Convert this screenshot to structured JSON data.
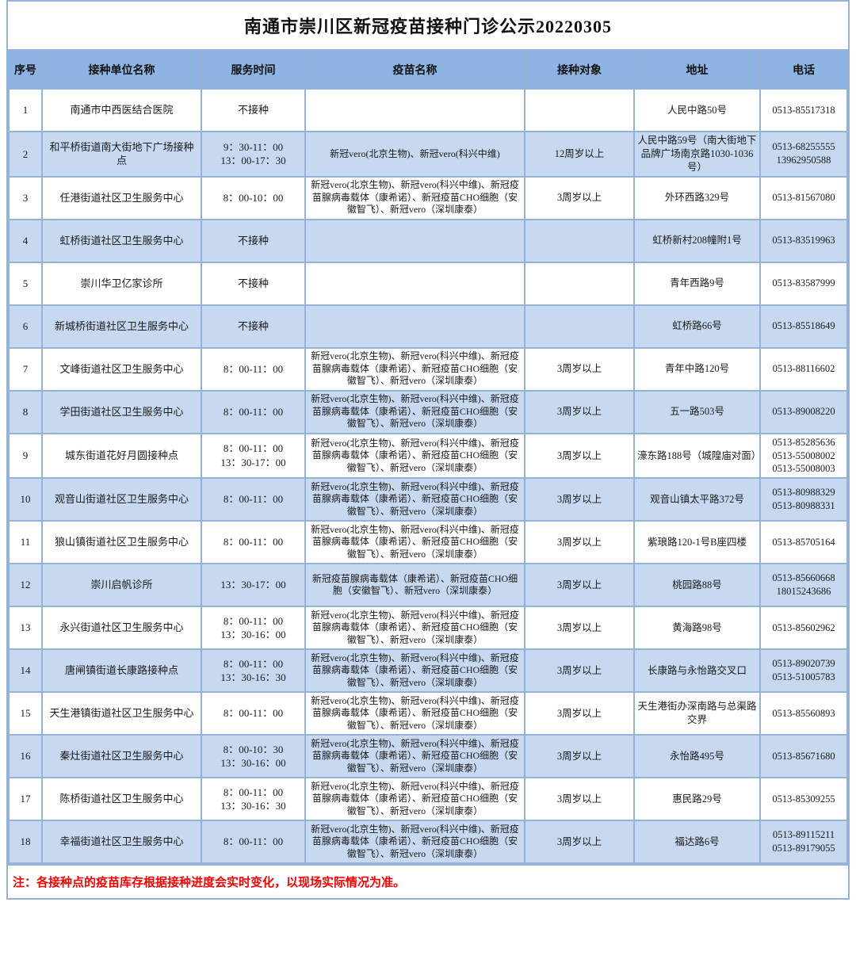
{
  "title": "南通市崇川区新冠疫苗接种门诊公示20220305",
  "columns": [
    "序号",
    "接种单位名称",
    "服务时间",
    "疫苗名称",
    "接种对象",
    "地址",
    "电话"
  ],
  "rows": [
    {
      "no": "1",
      "name": "南通市中西医结合医院",
      "time": "不接种",
      "vaccines": "",
      "target": "",
      "address": "人民中路50号",
      "phone": "0513-85517318"
    },
    {
      "no": "2",
      "name": "和平桥街道南大街地下广场接种点",
      "time": "9：30-11：00\n13：00-17：30",
      "vaccines": "新冠vero(北京生物)、新冠vero(科兴中维)",
      "target": "12周岁以上",
      "address": "人民中路59号（南大街地下品牌广场南京路1030-1036号）",
      "phone": "0513-68255555\n13962950588"
    },
    {
      "no": "3",
      "name": "任港街道社区卫生服务中心",
      "time": "8：00-10：00",
      "vaccines": "新冠vero(北京生物)、新冠vero(科兴中维)、新冠疫苗腺病毒载体（康希诺）、新冠疫苗CHO细胞（安徽智飞）、新冠vero（深圳康泰）",
      "target": "3周岁以上",
      "address": "外环西路329号",
      "phone": "0513-81567080"
    },
    {
      "no": "4",
      "name": "虹桥街道社区卫生服务中心",
      "time": "不接种",
      "vaccines": "",
      "target": "",
      "address": "虹桥新村208幢附1号",
      "phone": "0513-83519963"
    },
    {
      "no": "5",
      "name": "崇川华卫亿家诊所",
      "time": "不接种",
      "vaccines": "",
      "target": "",
      "address": "青年西路9号",
      "phone": "0513-83587999"
    },
    {
      "no": "6",
      "name": "新城桥街道社区卫生服务中心",
      "time": "不接种",
      "vaccines": "",
      "target": "",
      "address": "虹桥路66号",
      "phone": "0513-85518649"
    },
    {
      "no": "7",
      "name": "文峰街道社区卫生服务中心",
      "time": "8：00-11：00",
      "vaccines": "新冠vero(北京生物)、新冠vero(科兴中维)、新冠疫苗腺病毒载体（康希诺）、新冠疫苗CHO细胞（安徽智飞）、新冠vero（深圳康泰）",
      "target": "3周岁以上",
      "address": "青年中路120号",
      "phone": "0513-88116602"
    },
    {
      "no": "8",
      "name": "学田街道社区卫生服务中心",
      "time": "8：00-11：00",
      "vaccines": "新冠vero(北京生物)、新冠vero(科兴中维)、新冠疫苗腺病毒载体（康希诺）、新冠疫苗CHO细胞（安徽智飞）、新冠vero（深圳康泰）",
      "target": "3周岁以上",
      "address": "五一路503号",
      "phone": "0513-89008220"
    },
    {
      "no": "9",
      "name": "城东街道花好月圆接种点",
      "time": "8：00-11：00\n13：30-17：00",
      "vaccines": "新冠vero(北京生物)、新冠vero(科兴中维)、新冠疫苗腺病毒载体（康希诺）、新冠疫苗CHO细胞（安徽智飞）、新冠vero（深圳康泰）",
      "target": "3周岁以上",
      "address": "濠东路188号（城隍庙对面）",
      "phone": "0513-85285636\n0513-55008002\n0513-55008003"
    },
    {
      "no": "10",
      "name": "观音山街道社区卫生服务中心",
      "time": "8：00-11：00",
      "vaccines": "新冠vero(北京生物)、新冠vero(科兴中维)、新冠疫苗腺病毒载体（康希诺）、新冠疫苗CHO细胞（安徽智飞）、新冠vero（深圳康泰）",
      "target": "3周岁以上",
      "address": "观音山镇太平路372号",
      "phone": "0513-80988329\n0513-80988331"
    },
    {
      "no": "11",
      "name": "狼山镇街道社区卫生服务中心",
      "time": "8：00-11：00",
      "vaccines": "新冠vero(北京生物)、新冠vero(科兴中维)、新冠疫苗腺病毒载体（康希诺）、新冠疫苗CHO细胞（安徽智飞）、新冠vero（深圳康泰）",
      "target": "3周岁以上",
      "address": "紫琅路120-1号B座四楼",
      "phone": "0513-85705164"
    },
    {
      "no": "12",
      "name": "崇川启帆诊所",
      "time": "13：30-17：00",
      "vaccines": "新冠疫苗腺病毒载体（康希诺）、新冠疫苗CHO细胞（安徽智飞）、新冠vero（深圳康泰）",
      "target": "3周岁以上",
      "address": "桃园路88号",
      "phone": "0513-85660668\n18015243686"
    },
    {
      "no": "13",
      "name": "永兴街道社区卫生服务中心",
      "time": "8：00-11：00\n13：30-16：00",
      "vaccines": "新冠vero(北京生物)、新冠vero(科兴中维)、新冠疫苗腺病毒载体（康希诺）、新冠疫苗CHO细胞（安徽智飞）、新冠vero（深圳康泰）",
      "target": "3周岁以上",
      "address": "黄海路98号",
      "phone": "0513-85602962"
    },
    {
      "no": "14",
      "name": "唐闸镇街道长康路接种点",
      "time": "8：00-11：00\n13：30-16：30",
      "vaccines": "新冠vero(北京生物)、新冠vero(科兴中维)、新冠疫苗腺病毒载体（康希诺）、新冠疫苗CHO细胞（安徽智飞）、新冠vero（深圳康泰）",
      "target": "3周岁以上",
      "address": "长康路与永怡路交叉口",
      "phone": "0513-89020739\n0513-51005783"
    },
    {
      "no": "15",
      "name": "天生港镇街道社区卫生服务中心",
      "time": "8：00-11：00",
      "vaccines": "新冠vero(北京生物)、新冠vero(科兴中维)、新冠疫苗腺病毒载体（康希诺）、新冠疫苗CHO细胞（安徽智飞）、新冠vero（深圳康泰）",
      "target": "3周岁以上",
      "address": "天生港街办深南路与总渠路交界",
      "phone": "0513-85560893"
    },
    {
      "no": "16",
      "name": "秦灶街道社区卫生服务中心",
      "time": "8：00-10：30\n13：30-16：00",
      "vaccines": "新冠vero(北京生物)、新冠vero(科兴中维)、新冠疫苗腺病毒载体（康希诺）、新冠疫苗CHO细胞（安徽智飞）、新冠vero（深圳康泰）",
      "target": "3周岁以上",
      "address": "永怡路495号",
      "phone": "0513-85671680"
    },
    {
      "no": "17",
      "name": "陈桥街道社区卫生服务中心",
      "time": "8：00-11：00\n13：30-16：30",
      "vaccines": "新冠vero(北京生物)、新冠vero(科兴中维)、新冠疫苗腺病毒载体（康希诺）、新冠疫苗CHO细胞（安徽智飞）、新冠vero（深圳康泰）",
      "target": "3周岁以上",
      "address": "惠民路29号",
      "phone": "0513-85309255"
    },
    {
      "no": "18",
      "name": "幸福街道社区卫生服务中心",
      "time": "8：00-11：00",
      "vaccines": "新冠vero(北京生物)、新冠vero(科兴中维)、新冠疫苗腺病毒载体（康希诺）、新冠疫苗CHO细胞（安徽智飞）、新冠vero（深圳康泰）",
      "target": "3周岁以上",
      "address": "福达路6号",
      "phone": "0513-89115211\n0513-89179055"
    }
  ],
  "note": "注：各接种点的疫苗库存根据接种进度会实时变化，以现场实际情况为准。",
  "colors": {
    "header_bg": "#8DB4E2",
    "alt_row_bg": "#C6D9F1",
    "border": "#95B3D7",
    "note_text": "#FF0000"
  }
}
